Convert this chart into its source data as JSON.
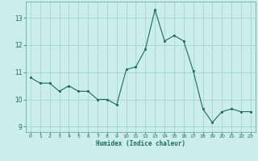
{
  "x": [
    0,
    1,
    2,
    3,
    4,
    5,
    6,
    7,
    8,
    9,
    10,
    11,
    12,
    13,
    14,
    15,
    16,
    17,
    18,
    19,
    20,
    21,
    22,
    23
  ],
  "y": [
    10.8,
    10.6,
    10.6,
    10.3,
    10.5,
    10.3,
    10.3,
    10.0,
    10.0,
    9.8,
    11.1,
    11.2,
    11.85,
    13.3,
    12.15,
    12.35,
    12.15,
    11.05,
    9.65,
    9.15,
    9.55,
    9.65,
    9.55,
    9.55
  ],
  "xlabel": "Humidex (Indice chaleur)",
  "xlim": [
    -0.5,
    23.5
  ],
  "ylim": [
    8.8,
    13.6
  ],
  "yticks": [
    9,
    10,
    11,
    12,
    13
  ],
  "xticks": [
    0,
    1,
    2,
    3,
    4,
    5,
    6,
    7,
    8,
    9,
    10,
    11,
    12,
    13,
    14,
    15,
    16,
    17,
    18,
    19,
    20,
    21,
    22,
    23
  ],
  "line_color": "#1a6b5a",
  "marker_color": "#1a6b5a",
  "bg_color": "#cceee8",
  "grid_color": "#99d4cc",
  "text_color": "#1a6b5a",
  "axis_color": "#5a9e94"
}
